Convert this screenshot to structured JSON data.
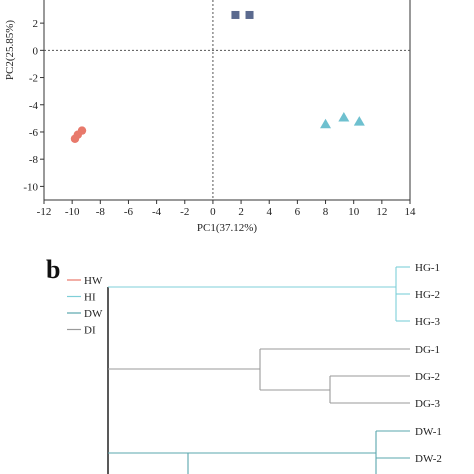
{
  "chart_data": [
    {
      "type": "scatter",
      "xlabel": "PC1(37.12%)",
      "ylabel": "PC2(25.85%)",
      "xlim": [
        -12,
        14
      ],
      "ylim": [
        -11,
        3.7
      ],
      "xticks": [
        -12,
        -10,
        -8,
        -6,
        -4,
        -2,
        0,
        2,
        4,
        6,
        8,
        10,
        12,
        14
      ],
      "yticks": [
        2,
        0,
        -2,
        -4,
        -6,
        -8,
        -10
      ],
      "reference_lines": {
        "x": 0,
        "y": 0,
        "style": "dotted"
      },
      "grid": false,
      "series": [
        {
          "marker": "circle",
          "color": "#e8796b",
          "points": [
            [
              -9.3,
              -5.9
            ],
            [
              -9.6,
              -6.2
            ],
            [
              -9.8,
              -6.5
            ]
          ]
        },
        {
          "marker": "square",
          "color": "#5b6a8f",
          "points": [
            [
              1.6,
              2.6
            ],
            [
              2.6,
              2.6
            ]
          ]
        },
        {
          "marker": "triangle",
          "color": "#6ec0cf",
          "points": [
            [
              8.0,
              -5.4
            ],
            [
              9.3,
              -4.9
            ],
            [
              10.4,
              -5.2
            ]
          ]
        }
      ]
    },
    {
      "type": "dendrogram",
      "panel_label": "b",
      "legend": [
        {
          "label": "HW",
          "color": "#e8796b"
        },
        {
          "label": "HI",
          "color": "#7fcfd8"
        },
        {
          "label": "DW",
          "color": "#5aa7ad"
        },
        {
          "label": "DI",
          "color": "#9a9a9a"
        }
      ],
      "leaves": [
        "HG-1",
        "HG-2",
        "HG-3",
        "DG-1",
        "DG-2",
        "DG-3",
        "DW-1",
        "DW-2"
      ],
      "branch_colors": {
        "HG": "#7fcfd8",
        "DG": "#9a9a9a",
        "DW": "#5aa7ad",
        "root": "#222222"
      }
    }
  ]
}
